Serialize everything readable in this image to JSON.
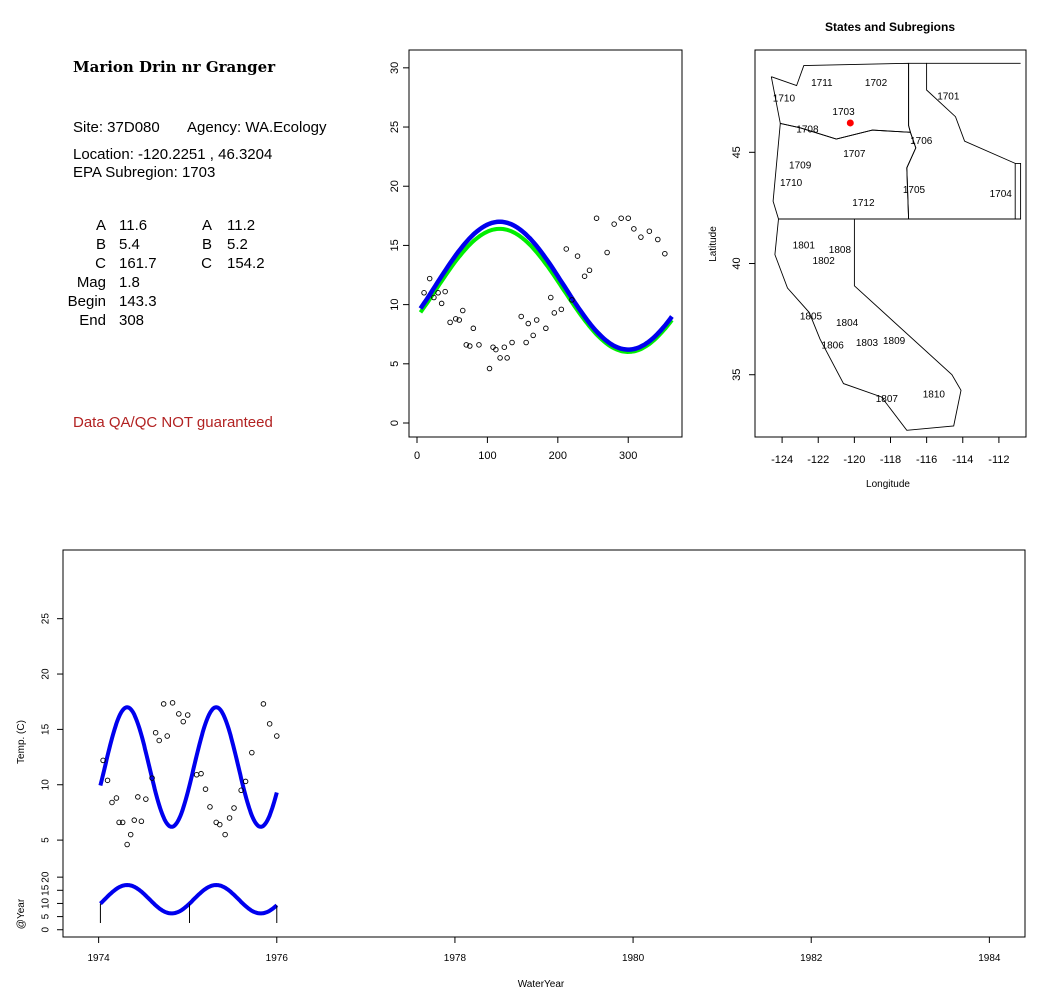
{
  "info": {
    "title": "Marion Drin nr Granger",
    "site_label": "Site: 37D080",
    "agency_label": "Agency: WA.Ecology",
    "location_label": "Location: -120.2251 , 46.3204",
    "subregion_label": "EPA Subregion: 1703",
    "params": [
      {
        "name": "A",
        "v1": "11.6",
        "name2": "A",
        "v2": "11.2"
      },
      {
        "name": "B",
        "v1": "5.4",
        "name2": "B",
        "v2": "5.2"
      },
      {
        "name": "C",
        "v1": "161.7",
        "name2": "C",
        "v2": "154.2"
      },
      {
        "name": "Mag",
        "v1": "1.8",
        "name2": "",
        "v2": ""
      },
      {
        "name": "Begin",
        "v1": "143.3",
        "name2": "",
        "v2": ""
      },
      {
        "name": "End",
        "v1": "308",
        "name2": "",
        "v2": ""
      }
    ],
    "disclaimer": "Data QA/QC NOT guaranteed"
  },
  "chart_data": [
    {
      "type": "scatter",
      "xlim": [
        0,
        365
      ],
      "ylim": [
        0,
        31
      ],
      "x_ticks": [
        "0",
        "100",
        "200",
        "300"
      ],
      "y_ticks": [
        "0",
        "5",
        "10",
        "15",
        "20",
        "25",
        "30"
      ],
      "points": [
        [
          10,
          11
        ],
        [
          18,
          12.2
        ],
        [
          24,
          10.6
        ],
        [
          30,
          11
        ],
        [
          35,
          10.1
        ],
        [
          40,
          11.1
        ],
        [
          47,
          8.5
        ],
        [
          55,
          8.8
        ],
        [
          60,
          8.7
        ],
        [
          65,
          9.5
        ],
        [
          70,
          6.6
        ],
        [
          75,
          6.5
        ],
        [
          80,
          8
        ],
        [
          88,
          6.6
        ],
        [
          103,
          4.6
        ],
        [
          108,
          6.4
        ],
        [
          112,
          6.2
        ],
        [
          118,
          5.5
        ],
        [
          124,
          6.4
        ],
        [
          128,
          5.5
        ],
        [
          135,
          6.8
        ],
        [
          148,
          9
        ],
        [
          155,
          6.8
        ],
        [
          158,
          8.4
        ],
        [
          165,
          7.4
        ],
        [
          170,
          8.7
        ],
        [
          183,
          8
        ],
        [
          190,
          10.6
        ],
        [
          195,
          9.3
        ],
        [
          205,
          9.6
        ],
        [
          212,
          14.7
        ],
        [
          220,
          10.4
        ],
        [
          228,
          14.1
        ],
        [
          238,
          12.4
        ],
        [
          245,
          12.9
        ],
        [
          255,
          17.3
        ],
        [
          270,
          14.4
        ],
        [
          280,
          16.8
        ],
        [
          290,
          17.3
        ],
        [
          300,
          17.3
        ],
        [
          308,
          16.4
        ],
        [
          318,
          15.7
        ],
        [
          330,
          16.2
        ],
        [
          342,
          15.5
        ],
        [
          352,
          14.3
        ]
      ],
      "series": [
        {
          "color": "#00ee00",
          "A": 11.2,
          "B": 5.2,
          "C": 154.2
        },
        {
          "color": "#0000ee",
          "A": 11.6,
          "B": 5.4,
          "C": 161.7
        }
      ]
    },
    {
      "type": "map",
      "title": "States and Subregions",
      "xlabel": "Longitude",
      "ylabel": "Latitude",
      "xlim": [
        -125.5,
        -110.5
      ],
      "ylim": [
        32.2,
        49.6
      ],
      "x_ticks": [
        "-124",
        "-122",
        "-120",
        "-118",
        "-116",
        "-114",
        "-112"
      ],
      "y_ticks": [
        "35",
        "40",
        "45"
      ],
      "site": {
        "lon": -120.2251,
        "lat": 46.3204,
        "color": "#ff0000"
      },
      "regions": [
        {
          "label": "1702",
          "lon": -118.8,
          "lat": 48.1
        },
        {
          "label": "1701",
          "lon": -114.8,
          "lat": 47.5
        },
        {
          "label": "1711",
          "lon": -121.8,
          "lat": 48.1
        },
        {
          "label": "1710",
          "lon": -123.9,
          "lat": 47.4
        },
        {
          "label": "1703",
          "lon": -120.6,
          "lat": 46.8
        },
        {
          "label": "1708",
          "lon": -122.6,
          "lat": 46.0
        },
        {
          "label": "1706",
          "lon": -116.3,
          "lat": 45.5
        },
        {
          "label": "1707",
          "lon": -120.0,
          "lat": 44.9
        },
        {
          "label": "1709",
          "lon": -123.0,
          "lat": 44.4
        },
        {
          "label": "1710",
          "lon": -123.5,
          "lat": 43.6
        },
        {
          "label": "1705",
          "lon": -116.7,
          "lat": 43.3
        },
        {
          "label": "1704",
          "lon": -111.9,
          "lat": 43.1
        },
        {
          "label": "1712",
          "lon": -119.5,
          "lat": 42.7
        },
        {
          "label": "1801",
          "lon": -122.8,
          "lat": 40.8
        },
        {
          "label": "1808",
          "lon": -120.8,
          "lat": 40.6
        },
        {
          "label": "1802",
          "lon": -121.7,
          "lat": 40.1
        },
        {
          "label": "1805",
          "lon": -122.4,
          "lat": 37.6
        },
        {
          "label": "1804",
          "lon": -120.4,
          "lat": 37.3
        },
        {
          "label": "1806",
          "lon": -121.2,
          "lat": 36.3
        },
        {
          "label": "1803",
          "lon": -119.3,
          "lat": 36.4
        },
        {
          "label": "1809",
          "lon": -117.8,
          "lat": 36.5
        },
        {
          "label": "1807",
          "lon": -118.2,
          "lat": 33.9
        },
        {
          "label": "1810",
          "lon": -115.6,
          "lat": 34.1
        }
      ]
    },
    {
      "type": "line",
      "xlabel": "WaterYear",
      "ylabel": "Temp. (C)",
      "ylabel2": "@Year",
      "xlim": [
        1973.6,
        1984.4
      ],
      "ylim": [
        2.3,
        30.3
      ],
      "ylim2": [
        -2,
        25
      ],
      "x_ticks": [
        "1974",
        "1976",
        "1978",
        "1980",
        "1982",
        "1984"
      ],
      "y_ticks": [
        "5",
        "10",
        "15",
        "20",
        "25"
      ],
      "y_ticks2": [
        "0",
        "5",
        "10",
        "15",
        "20"
      ],
      "points": [
        [
          1974.05,
          12.2
        ],
        [
          1974.1,
          10.4
        ],
        [
          1974.15,
          8.4
        ],
        [
          1974.2,
          8.8
        ],
        [
          1974.23,
          6.6
        ],
        [
          1974.27,
          6.6
        ],
        [
          1974.32,
          4.6
        ],
        [
          1974.36,
          5.5
        ],
        [
          1974.4,
          6.8
        ],
        [
          1974.44,
          8.9
        ],
        [
          1974.48,
          6.7
        ],
        [
          1974.53,
          8.7
        ],
        [
          1974.6,
          10.6
        ],
        [
          1974.64,
          14.7
        ],
        [
          1974.68,
          14.0
        ],
        [
          1974.73,
          17.3
        ],
        [
          1974.77,
          14.4
        ],
        [
          1974.83,
          17.4
        ],
        [
          1974.9,
          16.4
        ],
        [
          1974.95,
          15.7
        ],
        [
          1975.0,
          16.3
        ],
        [
          1975.1,
          10.9
        ],
        [
          1975.15,
          11.0
        ],
        [
          1975.2,
          9.6
        ],
        [
          1975.25,
          8.0
        ],
        [
          1975.32,
          6.6
        ],
        [
          1975.36,
          6.4
        ],
        [
          1975.42,
          5.5
        ],
        [
          1975.47,
          7.0
        ],
        [
          1975.52,
          7.9
        ],
        [
          1975.6,
          9.5
        ],
        [
          1975.65,
          10.3
        ],
        [
          1975.72,
          12.9
        ],
        [
          1975.85,
          17.3
        ],
        [
          1975.92,
          15.5
        ],
        [
          1976.0,
          14.4
        ]
      ]
    }
  ]
}
